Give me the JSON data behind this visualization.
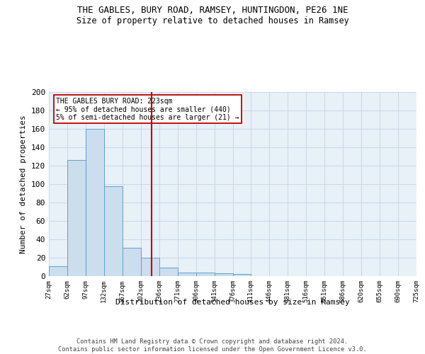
{
  "title1": "THE GABLES, BURY ROAD, RAMSEY, HUNTINGDON, PE26 1NE",
  "title2": "Size of property relative to detached houses in Ramsey",
  "xlabel": "Distribution of detached houses by size in Ramsey",
  "ylabel": "Number of detached properties",
  "bar_values": [
    11,
    126,
    160,
    98,
    31,
    20,
    9,
    4,
    4,
    3,
    2,
    0,
    0,
    0,
    0,
    0,
    0,
    0,
    0,
    0
  ],
  "bin_labels": [
    "27sqm",
    "62sqm",
    "97sqm",
    "132sqm",
    "167sqm",
    "202sqm",
    "236sqm",
    "271sqm",
    "306sqm",
    "341sqm",
    "376sqm",
    "411sqm",
    "446sqm",
    "481sqm",
    "516sqm",
    "551sqm",
    "586sqm",
    "620sqm",
    "655sqm",
    "690sqm",
    "725sqm"
  ],
  "bar_color": "#ccdded",
  "bar_edge_color": "#5ba3d0",
  "grid_color": "#c8d8e8",
  "bg_color": "#e8f0f8",
  "vline_color": "#bb0000",
  "annotation_text": "THE GABLES BURY ROAD: 223sqm\n← 95% of detached houses are smaller (440)\n5% of semi-detached houses are larger (21) →",
  "annotation_box_color": "#ffffff",
  "annotation_box_edge": "#bb0000",
  "ylim": [
    0,
    200
  ],
  "yticks": [
    0,
    20,
    40,
    60,
    80,
    100,
    120,
    140,
    160,
    180,
    200
  ],
  "footnote": "Contains HM Land Registry data © Crown copyright and database right 2024.\nContains public sector information licensed under the Open Government Licence v3.0."
}
